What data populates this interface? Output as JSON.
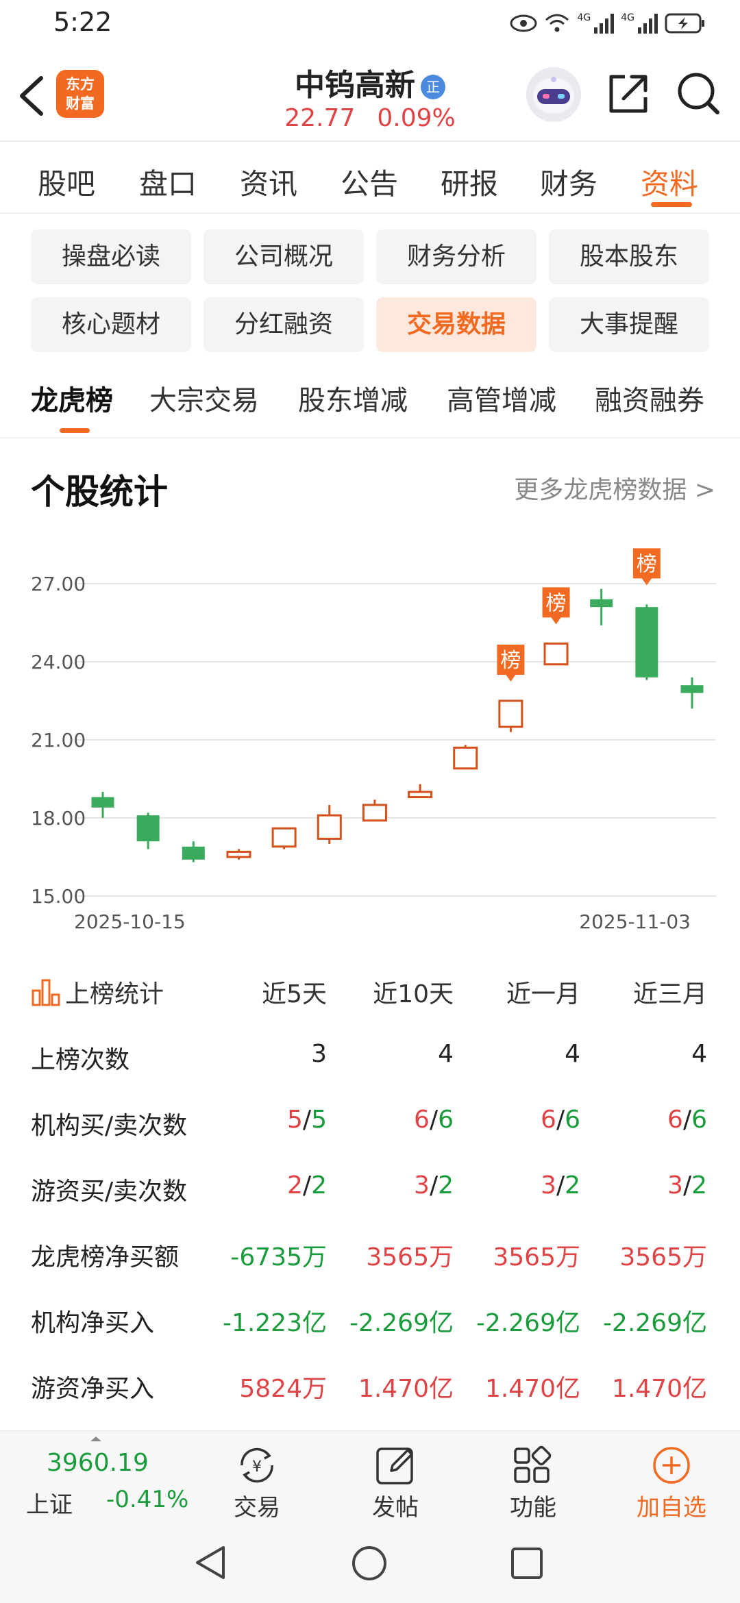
{
  "status_bar": {
    "time": "5:22",
    "net1": "4G",
    "net2": "4G"
  },
  "header": {
    "logo_line1": "东方",
    "logo_line2": "财富",
    "title": "中钨高新",
    "title_badge": "正",
    "price": "22.77",
    "change_pct": "0.09%"
  },
  "main_tabs": [
    "股吧",
    "盘口",
    "资讯",
    "公告",
    "研报",
    "财务",
    "资料"
  ],
  "sub_grid": [
    "操盘必读",
    "公司概况",
    "财务分析",
    "股本股东",
    "核心题材",
    "分红融资",
    "交易数据",
    "大事提醒"
  ],
  "sub_tabs": [
    "龙虎榜",
    "大宗交易",
    "股东增减",
    "高管增减",
    "融资融券"
  ],
  "section": {
    "title": "个股统计",
    "more": "更多龙虎榜数据 >"
  },
  "chart_data": {
    "type": "candlestick",
    "y_ticks": [
      "27.00",
      "24.00",
      "21.00",
      "18.00",
      "15.00"
    ],
    "ylim": [
      15,
      27
    ],
    "x_labels": [
      "2025-10-15",
      "2025-11-03"
    ],
    "marker_label": "榜",
    "candles": [
      {
        "open": 18.8,
        "close": 18.4,
        "high": 19.0,
        "low": 18.0,
        "dir": "down"
      },
      {
        "open": 18.1,
        "close": 17.1,
        "high": 18.2,
        "low": 16.8,
        "dir": "down"
      },
      {
        "open": 16.9,
        "close": 16.4,
        "high": 17.1,
        "low": 16.3,
        "dir": "down"
      },
      {
        "open": 16.5,
        "close": 16.7,
        "high": 16.8,
        "low": 16.4,
        "dir": "up"
      },
      {
        "open": 16.9,
        "close": 17.6,
        "high": 17.6,
        "low": 16.8,
        "dir": "up"
      },
      {
        "open": 17.2,
        "close": 18.1,
        "high": 18.5,
        "low": 17.0,
        "dir": "up"
      },
      {
        "open": 17.9,
        "close": 18.5,
        "high": 18.7,
        "low": 17.9,
        "dir": "up"
      },
      {
        "open": 18.8,
        "close": 19.0,
        "high": 19.3,
        "low": 18.8,
        "dir": "up"
      },
      {
        "open": 19.9,
        "close": 20.7,
        "high": 20.8,
        "low": 19.9,
        "dir": "up"
      },
      {
        "open": 21.5,
        "close": 22.5,
        "high": 22.5,
        "low": 21.3,
        "dir": "up",
        "marker": true
      },
      {
        "open": 23.9,
        "close": 24.7,
        "high": 24.7,
        "low": 23.9,
        "dir": "up",
        "marker": true
      },
      {
        "open": 26.4,
        "close": 26.1,
        "high": 26.8,
        "low": 25.4,
        "dir": "down"
      },
      {
        "open": 26.1,
        "close": 23.4,
        "high": 26.2,
        "low": 23.3,
        "dir": "down",
        "marker": true
      },
      {
        "open": 23.1,
        "close": 22.8,
        "high": 23.4,
        "low": 22.2,
        "dir": "down"
      }
    ]
  },
  "stats": {
    "head_label": "上榜统计",
    "columns": [
      "近5天",
      "近10天",
      "近一月",
      "近三月"
    ],
    "rows": [
      {
        "label": "上榜次数",
        "cells": [
          {
            "parts": [
              {
                "t": "3",
                "c": "dark"
              }
            ]
          },
          {
            "parts": [
              {
                "t": "4",
                "c": "dark"
              }
            ]
          },
          {
            "parts": [
              {
                "t": "4",
                "c": "dark"
              }
            ]
          },
          {
            "parts": [
              {
                "t": "4",
                "c": "dark"
              }
            ]
          }
        ]
      },
      {
        "label": "机构买/卖次数",
        "cells": [
          {
            "parts": [
              {
                "t": "5",
                "c": "red"
              },
              {
                "t": "/",
                "c": "dark"
              },
              {
                "t": "5",
                "c": "green"
              }
            ]
          },
          {
            "parts": [
              {
                "t": "6",
                "c": "red"
              },
              {
                "t": "/",
                "c": "dark"
              },
              {
                "t": "6",
                "c": "green"
              }
            ]
          },
          {
            "parts": [
              {
                "t": "6",
                "c": "red"
              },
              {
                "t": "/",
                "c": "dark"
              },
              {
                "t": "6",
                "c": "green"
              }
            ]
          },
          {
            "parts": [
              {
                "t": "6",
                "c": "red"
              },
              {
                "t": "/",
                "c": "dark"
              },
              {
                "t": "6",
                "c": "green"
              }
            ]
          }
        ]
      },
      {
        "label": "游资买/卖次数",
        "cells": [
          {
            "parts": [
              {
                "t": "2",
                "c": "red"
              },
              {
                "t": "/",
                "c": "dark"
              },
              {
                "t": "2",
                "c": "green"
              }
            ]
          },
          {
            "parts": [
              {
                "t": "3",
                "c": "red"
              },
              {
                "t": "/",
                "c": "dark"
              },
              {
                "t": "2",
                "c": "green"
              }
            ]
          },
          {
            "parts": [
              {
                "t": "3",
                "c": "red"
              },
              {
                "t": "/",
                "c": "dark"
              },
              {
                "t": "2",
                "c": "green"
              }
            ]
          },
          {
            "parts": [
              {
                "t": "3",
                "c": "red"
              },
              {
                "t": "/",
                "c": "dark"
              },
              {
                "t": "2",
                "c": "green"
              }
            ]
          }
        ]
      },
      {
        "label": "龙虎榜净买额",
        "cells": [
          {
            "parts": [
              {
                "t": "-6735万",
                "c": "green"
              }
            ]
          },
          {
            "parts": [
              {
                "t": "3565万",
                "c": "red"
              }
            ]
          },
          {
            "parts": [
              {
                "t": "3565万",
                "c": "red"
              }
            ]
          },
          {
            "parts": [
              {
                "t": "3565万",
                "c": "red"
              }
            ]
          }
        ]
      },
      {
        "label": "机构净买入",
        "cells": [
          {
            "parts": [
              {
                "t": "-1.223亿",
                "c": "green"
              }
            ]
          },
          {
            "parts": [
              {
                "t": "-2.269亿",
                "c": "green"
              }
            ]
          },
          {
            "parts": [
              {
                "t": "-2.269亿",
                "c": "green"
              }
            ]
          },
          {
            "parts": [
              {
                "t": "-2.269亿",
                "c": "green"
              }
            ]
          }
        ]
      },
      {
        "label": "游资净买入",
        "cells": [
          {
            "parts": [
              {
                "t": "5824万",
                "c": "red"
              }
            ]
          },
          {
            "parts": [
              {
                "t": "1.470亿",
                "c": "red"
              }
            ]
          },
          {
            "parts": [
              {
                "t": "1.470亿",
                "c": "red"
              }
            ]
          },
          {
            "parts": [
              {
                "t": "1.470亿",
                "c": "red"
              }
            ]
          }
        ]
      }
    ]
  },
  "bottom_bar": {
    "index_value": "3960.19",
    "index_name": "上证",
    "index_change": "-0.41%",
    "nav": [
      {
        "label": "交易",
        "icon": "trade-icon"
      },
      {
        "label": "发帖",
        "icon": "compose-icon"
      },
      {
        "label": "功能",
        "icon": "apps-icon"
      },
      {
        "label": "加自选",
        "icon": "add-circle-icon"
      }
    ]
  },
  "colors": {
    "accent": "#f26a21",
    "up": "#e04345",
    "down": "#1a9b3c",
    "candle_up": "#d5511b",
    "candle_down": "#3aaa5c"
  }
}
